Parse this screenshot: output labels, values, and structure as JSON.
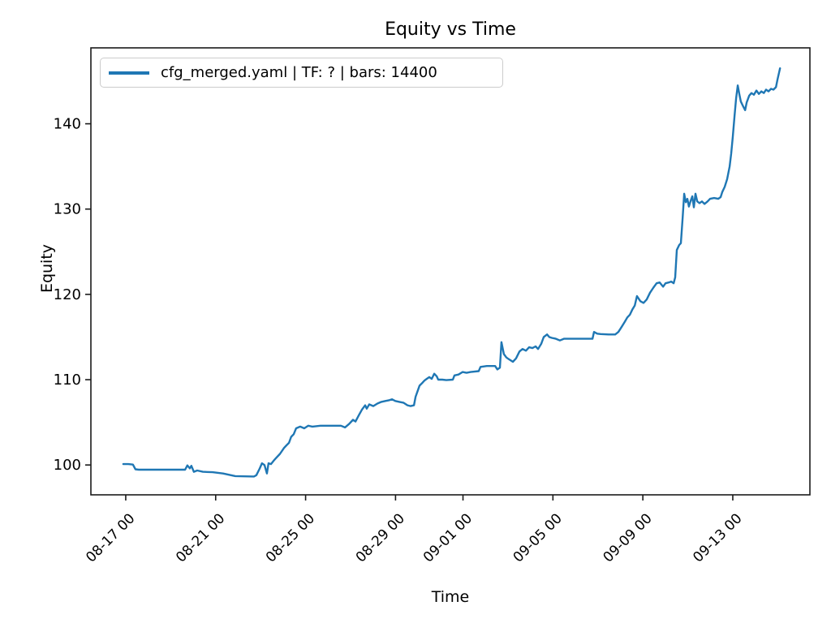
{
  "figure": {
    "title": "Equity vs Time",
    "xlabel": "Time",
    "ylabel": "Equity",
    "background_color": "#ffffff",
    "spine_color": "#1a1a1a"
  },
  "legend": {
    "label": "cfg_merged.yaml | TF: ? | bars: 14400",
    "line_color": "#1f77b4"
  },
  "chart_data": {
    "type": "line",
    "title": "Equity vs Time",
    "xlabel": "Time",
    "ylabel": "Equity",
    "grid": false,
    "legend_position": "upper left",
    "line_color": "#1f77b4",
    "x_unit": "days relative to 08-17 00:00 tick",
    "xlim": [
      -1.55,
      30.43
    ],
    "ylim": [
      96.5,
      148.9
    ],
    "y_ticks": [
      100,
      110,
      120,
      130,
      140
    ],
    "x_ticks": [
      0,
      4,
      8,
      12,
      15,
      19,
      23,
      27
    ],
    "x_tick_labels": [
      "08-17 00",
      "08-21 00",
      "08-25 00",
      "08-29 00",
      "09-01 00",
      "09-05 00",
      "09-09 00",
      "09-13 00"
    ],
    "series": [
      {
        "name": "cfg_merged.yaml | TF: ? | bars: 14400",
        "points": [
          [
            -0.11,
            100.1
          ],
          [
            0.11,
            100.1
          ],
          [
            0.32,
            100.05
          ],
          [
            0.43,
            99.5
          ],
          [
            0.58,
            99.45
          ],
          [
            2.64,
            99.45
          ],
          [
            2.74,
            99.95
          ],
          [
            2.85,
            99.6
          ],
          [
            2.92,
            99.9
          ],
          [
            3.03,
            99.2
          ],
          [
            3.18,
            99.35
          ],
          [
            3.43,
            99.2
          ],
          [
            3.86,
            99.15
          ],
          [
            4.33,
            99.0
          ],
          [
            4.87,
            98.7
          ],
          [
            5.7,
            98.65
          ],
          [
            5.81,
            98.8
          ],
          [
            5.96,
            99.6
          ],
          [
            6.06,
            100.2
          ],
          [
            6.17,
            100.0
          ],
          [
            6.28,
            99.0
          ],
          [
            6.35,
            100.2
          ],
          [
            6.46,
            100.1
          ],
          [
            6.61,
            100.6
          ],
          [
            6.68,
            100.8
          ],
          [
            6.86,
            101.3
          ],
          [
            7.04,
            102.0
          ],
          [
            7.15,
            102.3
          ],
          [
            7.26,
            102.6
          ],
          [
            7.36,
            103.3
          ],
          [
            7.47,
            103.6
          ],
          [
            7.58,
            104.3
          ],
          [
            7.76,
            104.5
          ],
          [
            7.94,
            104.3
          ],
          [
            8.12,
            104.6
          ],
          [
            8.3,
            104.5
          ],
          [
            8.66,
            104.6
          ],
          [
            9.57,
            104.6
          ],
          [
            9.75,
            104.4
          ],
          [
            9.93,
            104.8
          ],
          [
            10.11,
            105.3
          ],
          [
            10.22,
            105.1
          ],
          [
            10.36,
            105.8
          ],
          [
            10.51,
            106.5
          ],
          [
            10.65,
            107.0
          ],
          [
            10.72,
            106.6
          ],
          [
            10.83,
            107.1
          ],
          [
            11.01,
            106.9
          ],
          [
            11.19,
            107.2
          ],
          [
            11.37,
            107.4
          ],
          [
            11.55,
            107.5
          ],
          [
            11.73,
            107.6
          ],
          [
            11.84,
            107.7
          ],
          [
            11.99,
            107.5
          ],
          [
            12.17,
            107.4
          ],
          [
            12.35,
            107.3
          ],
          [
            12.53,
            107.0
          ],
          [
            12.67,
            106.9
          ],
          [
            12.82,
            107.0
          ],
          [
            12.89,
            108.0
          ],
          [
            13.0,
            108.8
          ],
          [
            13.07,
            109.3
          ],
          [
            13.18,
            109.6
          ],
          [
            13.29,
            109.9
          ],
          [
            13.39,
            110.1
          ],
          [
            13.5,
            110.3
          ],
          [
            13.61,
            110.1
          ],
          [
            13.72,
            110.7
          ],
          [
            13.83,
            110.4
          ],
          [
            13.9,
            110.0
          ],
          [
            14.08,
            110.0
          ],
          [
            14.26,
            109.95
          ],
          [
            14.55,
            110.0
          ],
          [
            14.62,
            110.5
          ],
          [
            14.8,
            110.6
          ],
          [
            14.98,
            110.9
          ],
          [
            15.16,
            110.8
          ],
          [
            15.34,
            110.9
          ],
          [
            15.7,
            111.0
          ],
          [
            15.78,
            111.5
          ],
          [
            16.06,
            111.6
          ],
          [
            16.43,
            111.6
          ],
          [
            16.53,
            111.2
          ],
          [
            16.64,
            111.4
          ],
          [
            16.71,
            114.4
          ],
          [
            16.82,
            113.0
          ],
          [
            16.93,
            112.6
          ],
          [
            17.04,
            112.4
          ],
          [
            17.22,
            112.1
          ],
          [
            17.36,
            112.5
          ],
          [
            17.51,
            113.3
          ],
          [
            17.65,
            113.6
          ],
          [
            17.8,
            113.4
          ],
          [
            17.94,
            113.8
          ],
          [
            18.09,
            113.7
          ],
          [
            18.23,
            113.9
          ],
          [
            18.34,
            113.6
          ],
          [
            18.48,
            114.2
          ],
          [
            18.59,
            115.0
          ],
          [
            18.74,
            115.3
          ],
          [
            18.84,
            115.0
          ],
          [
            18.95,
            114.9
          ],
          [
            19.13,
            114.8
          ],
          [
            19.31,
            114.6
          ],
          [
            19.49,
            114.8
          ],
          [
            19.68,
            114.8
          ],
          [
            20.04,
            114.8
          ],
          [
            20.4,
            114.8
          ],
          [
            20.76,
            114.8
          ],
          [
            20.83,
            115.6
          ],
          [
            20.97,
            115.4
          ],
          [
            21.12,
            115.35
          ],
          [
            21.48,
            115.3
          ],
          [
            21.77,
            115.3
          ],
          [
            21.91,
            115.6
          ],
          [
            22.06,
            116.2
          ],
          [
            22.2,
            116.8
          ],
          [
            22.31,
            117.3
          ],
          [
            22.42,
            117.6
          ],
          [
            22.53,
            118.2
          ],
          [
            22.64,
            118.7
          ],
          [
            22.74,
            119.8
          ],
          [
            22.89,
            119.2
          ],
          [
            23.03,
            119.0
          ],
          [
            23.17,
            119.4
          ],
          [
            23.32,
            120.2
          ],
          [
            23.47,
            120.8
          ],
          [
            23.61,
            121.3
          ],
          [
            23.75,
            121.4
          ],
          [
            23.9,
            120.9
          ],
          [
            24.01,
            121.3
          ],
          [
            24.15,
            121.4
          ],
          [
            24.26,
            121.5
          ],
          [
            24.37,
            121.3
          ],
          [
            24.44,
            122.0
          ],
          [
            24.51,
            125.2
          ],
          [
            24.62,
            125.8
          ],
          [
            24.69,
            126.0
          ],
          [
            24.77,
            129.0
          ],
          [
            24.84,
            131.8
          ],
          [
            24.91,
            130.8
          ],
          [
            24.98,
            131.2
          ],
          [
            25.05,
            130.3
          ],
          [
            25.13,
            131.0
          ],
          [
            25.2,
            131.5
          ],
          [
            25.27,
            130.2
          ],
          [
            25.34,
            131.8
          ],
          [
            25.42,
            130.9
          ],
          [
            25.52,
            130.7
          ],
          [
            25.63,
            130.9
          ],
          [
            25.74,
            130.6
          ],
          [
            25.88,
            130.9
          ],
          [
            25.99,
            131.2
          ],
          [
            26.17,
            131.3
          ],
          [
            26.35,
            131.2
          ],
          [
            26.46,
            131.4
          ],
          [
            26.53,
            132.0
          ],
          [
            26.64,
            132.6
          ],
          [
            26.75,
            133.5
          ],
          [
            26.86,
            135.0
          ],
          [
            26.93,
            136.5
          ],
          [
            27.0,
            138.5
          ],
          [
            27.08,
            141.0
          ],
          [
            27.15,
            143.0
          ],
          [
            27.22,
            144.5
          ],
          [
            27.29,
            143.5
          ],
          [
            27.36,
            142.6
          ],
          [
            27.47,
            142.0
          ],
          [
            27.55,
            141.6
          ],
          [
            27.62,
            142.5
          ],
          [
            27.73,
            143.3
          ],
          [
            27.83,
            143.6
          ],
          [
            27.94,
            143.4
          ],
          [
            28.05,
            143.9
          ],
          [
            28.16,
            143.5
          ],
          [
            28.27,
            143.8
          ],
          [
            28.38,
            143.6
          ],
          [
            28.48,
            144.0
          ],
          [
            28.59,
            143.8
          ],
          [
            28.7,
            144.1
          ],
          [
            28.81,
            144.0
          ],
          [
            28.92,
            144.3
          ],
          [
            28.99,
            145.2
          ],
          [
            29.06,
            146.0
          ],
          [
            29.1,
            146.5
          ]
        ]
      }
    ]
  }
}
